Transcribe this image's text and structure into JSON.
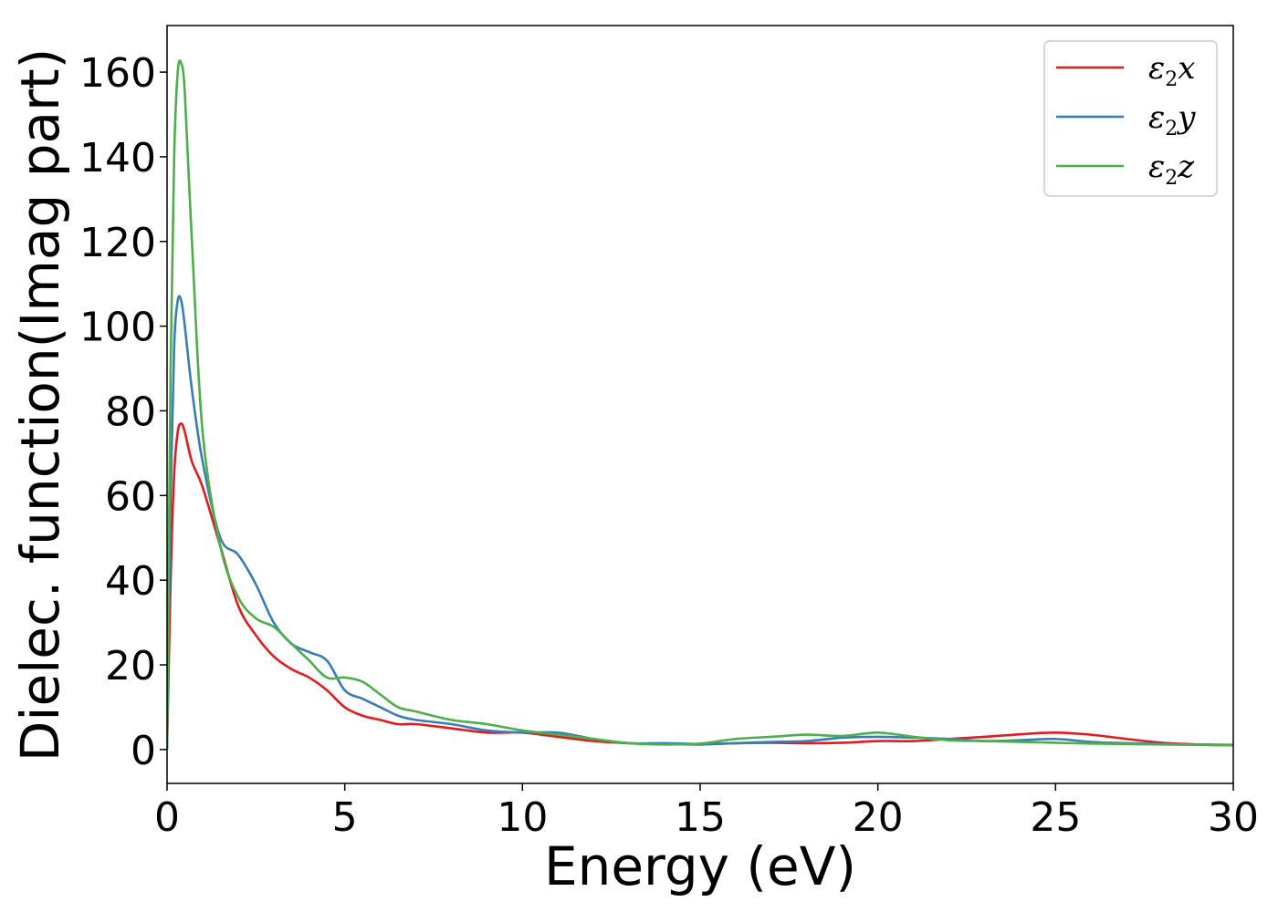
{
  "chart_data": {
    "type": "line",
    "title": "",
    "xlabel": "Energy (eV)",
    "ylabel": "Dielec. function(Imag part)",
    "xlim": [
      0,
      30
    ],
    "ylim": [
      -8,
      171
    ],
    "xticks": [
      0,
      5,
      10,
      15,
      20,
      25,
      30
    ],
    "yticks": [
      0,
      20,
      40,
      60,
      80,
      100,
      120,
      140,
      160
    ],
    "grid": false,
    "legend_position": "top-right",
    "series": [
      {
        "name": "ε2x",
        "legend": {
          "base": "ε",
          "sub": "2",
          "suffix": "x"
        },
        "color": "#e41a1c",
        "x": [
          0,
          0.1,
          0.2,
          0.3,
          0.4,
          0.5,
          0.7,
          1.0,
          1.5,
          2.0,
          2.5,
          3.0,
          3.5,
          4.0,
          4.5,
          5.0,
          5.5,
          6.0,
          6.5,
          7.0,
          8.0,
          9.0,
          10.0,
          11.0,
          12.0,
          13.0,
          14.0,
          15.0,
          16.0,
          17.0,
          18.0,
          19.0,
          20.0,
          21.0,
          22.0,
          23.0,
          24.0,
          25.0,
          26.0,
          27.0,
          28.0,
          29.0,
          30.0
        ],
        "y": [
          0,
          40,
          65,
          75,
          77,
          75,
          68,
          62,
          48,
          34,
          27,
          22,
          19,
          17,
          14,
          10,
          8,
          7,
          6,
          6,
          5,
          4,
          4,
          3,
          2,
          1.5,
          1.3,
          1.2,
          1.5,
          1.6,
          1.5,
          1.6,
          2.0,
          2.0,
          2.5,
          3.0,
          3.6,
          4.0,
          3.5,
          2.5,
          1.6,
          1.2,
          1.0
        ]
      },
      {
        "name": "ε2y",
        "legend": {
          "base": "ε",
          "sub": "2",
          "suffix": "y"
        },
        "color": "#377eb8",
        "x": [
          0,
          0.1,
          0.2,
          0.3,
          0.4,
          0.5,
          0.7,
          1.0,
          1.5,
          2.0,
          2.5,
          3.0,
          3.5,
          4.0,
          4.5,
          5.0,
          5.5,
          6.0,
          6.5,
          7.0,
          8.0,
          9.0,
          10.0,
          11.0,
          12.0,
          13.0,
          14.0,
          15.0,
          16.0,
          17.0,
          18.0,
          19.0,
          20.0,
          21.0,
          22.0,
          23.0,
          24.0,
          25.0,
          26.0,
          27.0,
          28.0,
          29.0,
          30.0
        ],
        "y": [
          0,
          60,
          95,
          106,
          106,
          100,
          85,
          68,
          50,
          46,
          39,
          30,
          25,
          23,
          21,
          14,
          12,
          10,
          8,
          7,
          6,
          4.5,
          4,
          4,
          2.5,
          1.5,
          1.5,
          1.3,
          1.5,
          1.8,
          2.0,
          2.8,
          3.0,
          2.8,
          2.5,
          2.0,
          2.2,
          2.5,
          1.8,
          1.5,
          1.3,
          1.2,
          1.1
        ]
      },
      {
        "name": "ε2z",
        "legend": {
          "base": "ε",
          "sub": "2",
          "suffix": "z"
        },
        "color": "#4daf4a",
        "x": [
          0,
          0.1,
          0.2,
          0.3,
          0.4,
          0.5,
          0.7,
          1.0,
          1.5,
          2.0,
          2.5,
          3.0,
          3.5,
          4.0,
          4.5,
          5.0,
          5.5,
          6.0,
          6.5,
          7.0,
          8.0,
          9.0,
          10.0,
          11.0,
          12.0,
          13.0,
          14.0,
          15.0,
          16.0,
          17.0,
          18.0,
          19.0,
          20.0,
          21.0,
          22.0,
          23.0,
          24.0,
          25.0,
          26.0,
          27.0,
          28.0,
          29.0,
          30.0
        ],
        "y": [
          0,
          90,
          140,
          160,
          162,
          155,
          120,
          75,
          48,
          36,
          31,
          29,
          25,
          21,
          17,
          17,
          16,
          13,
          10,
          9,
          7,
          6,
          4.5,
          3.5,
          2.5,
          1.5,
          1.2,
          1.4,
          2.5,
          3.0,
          3.5,
          3.2,
          4.0,
          3.0,
          2.2,
          2.0,
          1.8,
          1.6,
          1.4,
          1.3,
          1.2,
          1.1,
          1.0
        ]
      }
    ]
  }
}
